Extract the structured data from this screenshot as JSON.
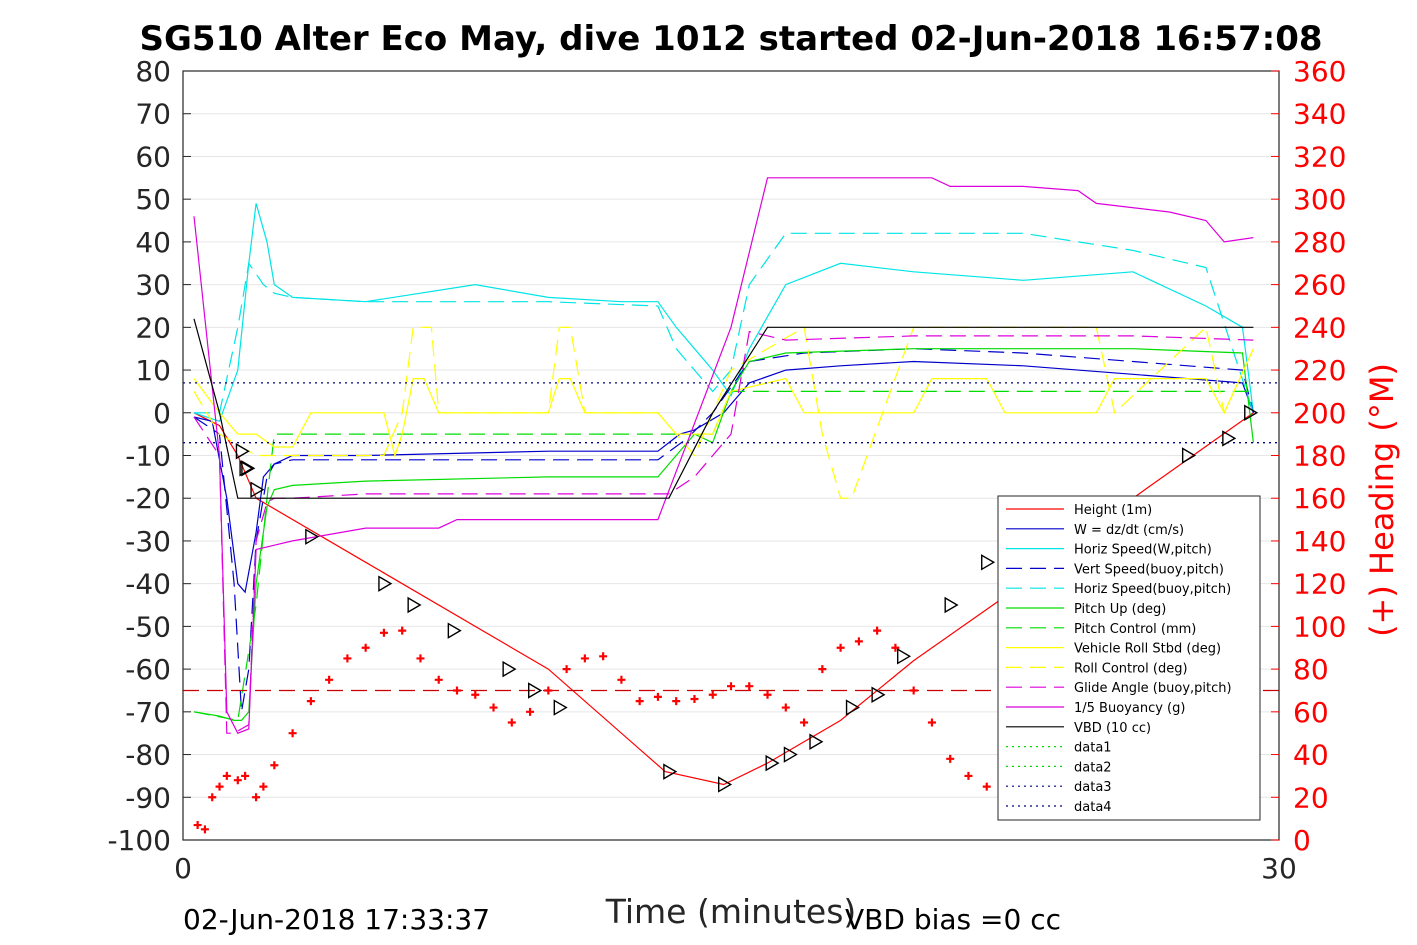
{
  "chart_data": {
    "type": "line",
    "title": "SG510 Alter Eco May, dive 1012 started 02-Jun-2018 16:57:08",
    "xlabel": "Time (minutes)",
    "ylabel_right": "(+) Heading (°M)",
    "xlim": [
      0,
      30
    ],
    "ylim": [
      -100,
      80
    ],
    "ylim_right": [
      0,
      360
    ],
    "x_ticks": [
      "0",
      "30"
    ],
    "y_ticks": [
      "80",
      "70",
      "60",
      "50",
      "40",
      "30",
      "20",
      "10",
      "0",
      "-10",
      "-20",
      "-30",
      "-40",
      "-50",
      "-60",
      "-70",
      "-80",
      "-90",
      "-100"
    ],
    "y2_ticks": [
      "360",
      "340",
      "320",
      "300",
      "280",
      "260",
      "240",
      "220",
      "200",
      "180",
      "160",
      "140",
      "120",
      "100",
      "80",
      "60",
      "40",
      "20",
      "0"
    ],
    "grid": true,
    "legend_position": "lower-right",
    "footer_left": "02-Jun-2018 17:33:37",
    "footer_right": "VBD bias =0 cc",
    "series": [
      {
        "name": "Height (1m)",
        "color": "#ff0000",
        "style": "solid",
        "x": [
          0.3,
          1.0,
          1.5,
          2.0,
          5.0,
          10.0,
          13.2,
          14.8,
          16.0,
          18.0,
          20.0,
          23.0,
          26.0,
          29.3
        ],
        "y": [
          0,
          -3,
          -10,
          -20,
          -35,
          -60,
          -84,
          -87,
          -82,
          -72,
          -58,
          -40,
          -20,
          0
        ]
      },
      {
        "name": "W = dz/dt (cm/s)",
        "color": "#0000cc",
        "style": "solid",
        "x": [
          0.3,
          0.8,
          1.2,
          1.5,
          1.7,
          2.0,
          2.2,
          2.5,
          3.0,
          5.0,
          10.0,
          13.0,
          13.6,
          14.0,
          14.8,
          15.5,
          16.5,
          18.0,
          20.0,
          23.0,
          26.0,
          29.0,
          29.3
        ],
        "y": [
          -1,
          -2,
          -20,
          -40,
          -42,
          -28,
          -15,
          -12,
          -10,
          -10,
          -9,
          -9,
          -5,
          -4,
          0,
          7,
          10,
          11,
          12,
          11,
          9,
          7,
          0
        ]
      },
      {
        "name": "Horiz Speed(W,pitch)",
        "color": "#00e5e5",
        "style": "solid",
        "x": [
          0.3,
          1.0,
          1.5,
          1.8,
          2.0,
          2.3,
          2.5,
          3.0,
          5.0,
          8.0,
          10.0,
          12.0,
          13.0,
          13.5,
          14.0,
          14.5,
          15.0,
          15.5,
          16.5,
          18.0,
          20.0,
          23.0,
          26.0,
          28.0,
          29.0,
          29.3
        ],
        "y": [
          0,
          -2,
          10,
          35,
          49,
          40,
          30,
          27,
          26,
          30,
          27,
          26,
          26,
          20,
          15,
          10,
          4,
          15,
          30,
          35,
          33,
          31,
          33,
          25,
          20,
          0
        ]
      },
      {
        "name": "Vert Speed(buoy,pitch)",
        "color": "#0000cc",
        "style": "dash",
        "x": [
          0.3,
          1.0,
          1.4,
          1.6,
          1.8,
          2.0,
          2.3,
          2.5,
          3.0,
          5.0,
          10.0,
          13.0,
          13.8,
          14.5,
          15.5,
          17.0,
          20.0,
          23.0,
          26.0,
          29.0,
          29.3
        ],
        "y": [
          -1,
          -5,
          -40,
          -70,
          -60,
          -30,
          -15,
          -12,
          -11,
          -11,
          -11,
          -11,
          -6,
          0,
          12,
          14,
          15,
          14,
          12,
          10,
          0
        ]
      },
      {
        "name": "Horiz Speed(buoy,pitch)",
        "color": "#00e5e5",
        "style": "dash",
        "x": [
          0.3,
          1.0,
          1.5,
          1.8,
          2.2,
          2.5,
          3.0,
          5.0,
          10.0,
          13.0,
          13.5,
          14.0,
          14.5,
          15.0,
          15.5,
          16.5,
          18.0,
          20.0,
          23.0,
          26.0,
          28.0,
          29.3
        ],
        "y": [
          0,
          0,
          20,
          35,
          30,
          28,
          27,
          26,
          26,
          25,
          15,
          10,
          5,
          10,
          30,
          42,
          42,
          42,
          42,
          38,
          34,
          0
        ]
      },
      {
        "name": "Pitch Up (deg)",
        "color": "#00dd00",
        "style": "solid",
        "x": [
          0.3,
          1.0,
          1.4,
          1.6,
          1.8,
          2.0,
          2.3,
          2.5,
          3.0,
          5.0,
          10.0,
          13.0,
          13.5,
          14.0,
          14.5,
          15.0,
          15.5,
          16.5,
          20.0,
          23.0,
          26.0,
          29.0,
          29.3
        ],
        "y": [
          -70,
          -71,
          -72,
          -72,
          -70,
          -40,
          -22,
          -18,
          -17,
          -16,
          -15,
          -15,
          -10,
          -5,
          -7,
          5,
          12,
          14,
          15,
          15,
          15,
          14,
          -7
        ]
      },
      {
        "name": "Pitch Control (mm)",
        "color": "#00dd00",
        "style": "dash",
        "x": [
          0.3,
          1.5,
          2.0,
          2.3,
          2.5,
          13.3,
          13.5,
          14.5,
          15.0,
          29.3
        ],
        "y": [
          -70,
          -72,
          -45,
          -20,
          -5,
          -5,
          -5,
          -5,
          5,
          5
        ]
      },
      {
        "name": "Vehicle Roll Stbd (deg)",
        "color": "#ffff00",
        "style": "solid",
        "x": [
          0.3,
          1.0,
          1.5,
          2.0,
          2.5,
          3.0,
          3.5,
          5.5,
          5.8,
          6.0,
          6.3,
          6.6,
          7.0,
          10.0,
          10.3,
          10.6,
          11.0,
          13.0,
          13.5,
          14.5,
          15.0,
          16.5,
          17.0,
          20.0,
          20.5,
          22.0,
          22.5,
          25.0,
          25.5,
          28.0,
          28.5,
          29.3
        ],
        "y": [
          8,
          0,
          -5,
          -5,
          -8,
          -8,
          0,
          0,
          -10,
          -5,
          8,
          8,
          0,
          0,
          8,
          8,
          0,
          0,
          -5,
          -5,
          5,
          8,
          0,
          0,
          8,
          8,
          0,
          0,
          8,
          8,
          0,
          15
        ]
      },
      {
        "name": "Roll Control (deg)",
        "color": "#ffff00",
        "style": "dash",
        "x": [
          0.3,
          1.0,
          2.0,
          3.0,
          5.5,
          6.0,
          6.3,
          6.8,
          7.0,
          10.0,
          10.3,
          10.6,
          11.0,
          13.0,
          14.0,
          15.0,
          17.0,
          17.5,
          18.0,
          18.3,
          20.0,
          22.0,
          25.0,
          25.5,
          28.0,
          28.5,
          29.3
        ],
        "y": [
          5,
          -5,
          -10,
          -10,
          -10,
          0,
          20,
          20,
          0,
          0,
          20,
          20,
          0,
          0,
          -10,
          10,
          20,
          -5,
          -20,
          -20,
          20,
          20,
          20,
          0,
          20,
          0,
          15
        ]
      },
      {
        "name": "Glide Angle (buoy,pitch)",
        "color": "#dd00dd",
        "style": "dash",
        "x": [
          0.3,
          1.0,
          1.2,
          1.4,
          1.6,
          1.8,
          2.0,
          2.3,
          2.5,
          3.0,
          5.0,
          13.0,
          13.3,
          14.0,
          15.0,
          15.5,
          16.5,
          20.0,
          26.0,
          29.3
        ],
        "y": [
          -1,
          -10,
          -75,
          -75,
          -74,
          -73,
          -30,
          -21,
          -20,
          -20,
          -19,
          -19,
          -19,
          -15,
          -5,
          19,
          17,
          18,
          18,
          17
        ]
      },
      {
        "name": "1/5 Buoyancy (g)",
        "color": "#dd00dd",
        "style": "solid",
        "x": [
          0.3,
          1.0,
          1.2,
          1.5,
          1.8,
          2.0,
          2.5,
          3.0,
          5.0,
          7.0,
          7.5,
          13.0,
          15.0,
          16.0,
          20.5,
          21.0,
          23.0,
          24.5,
          25.0,
          27.0,
          28.0,
          28.5,
          29.3
        ],
        "y": [
          46,
          -10,
          -70,
          -75,
          -74,
          -32,
          -31,
          -30,
          -27,
          -27,
          -25,
          -25,
          20,
          55,
          55,
          53,
          53,
          52,
          49,
          47,
          45,
          40,
          41
        ]
      },
      {
        "name": "VBD (10 cc)",
        "color": "#000000",
        "style": "solid",
        "x": [
          0.3,
          1.0,
          1.5,
          13.3,
          14.5,
          16.0,
          29.3
        ],
        "y": [
          22,
          0,
          -20,
          -20,
          0,
          20,
          20
        ]
      },
      {
        "name": "data1",
        "color": "#00dd00",
        "style": "dot",
        "x": [],
        "y": []
      },
      {
        "name": "data2",
        "color": "#00dd00",
        "style": "dot",
        "x": [],
        "y": []
      },
      {
        "name": "data3",
        "color": "#000080",
        "style": "dot",
        "x": [
          0,
          30
        ],
        "y": [
          7,
          7
        ]
      },
      {
        "name": "data4",
        "color": "#000080",
        "style": "dot",
        "x": [
          0,
          30
        ],
        "y": [
          -7,
          -7
        ]
      }
    ],
    "heading": {
      "color": "#ff0000",
      "target_deg": 70,
      "x": [
        0.4,
        0.6,
        0.8,
        1.0,
        1.2,
        1.5,
        1.7,
        2.0,
        2.2,
        2.5,
        3.0,
        3.5,
        4.0,
        4.5,
        5.0,
        5.5,
        6.0,
        6.5,
        7.0,
        7.5,
        8.0,
        8.5,
        9.0,
        9.5,
        10.0,
        10.5,
        11.0,
        11.5,
        12.0,
        12.5,
        13.0,
        13.5,
        14.0,
        14.5,
        15.0,
        15.5,
        16.0,
        16.5,
        17.0,
        17.5,
        18.0,
        18.5,
        19.0,
        19.5,
        20.0,
        20.5,
        21.0,
        21.5,
        22.0,
        22.5,
        23.0,
        23.5,
        24.0,
        24.5,
        25.0,
        25.5,
        26.0,
        26.5,
        27.0,
        27.5,
        28.0,
        28.5,
        29.0,
        29.3
      ],
      "y": [
        7,
        5,
        20,
        25,
        30,
        28,
        30,
        20,
        25,
        35,
        50,
        65,
        75,
        85,
        90,
        97,
        98,
        85,
        75,
        70,
        68,
        62,
        55,
        60,
        70,
        80,
        85,
        86,
        75,
        65,
        67,
        65,
        66,
        68,
        72,
        72,
        68,
        62,
        55,
        80,
        90,
        93,
        98,
        90,
        70,
        55,
        38,
        30,
        25,
        28,
        40,
        55,
        70,
        80,
        86,
        82,
        75,
        65,
        55,
        52,
        50,
        48,
        45,
        40
      ]
    },
    "markers": {
      "color": "#000000",
      "x": [
        1.6,
        1.7,
        1.75,
        2.0,
        3.5,
        5.5,
        6.3,
        7.4,
        8.9,
        9.6,
        10.3,
        13.3,
        14.8,
        16.1,
        16.6,
        17.3,
        18.3,
        19.0,
        19.7,
        21.0,
        22.0,
        27.5,
        28.6,
        29.2
      ],
      "y": [
        -9,
        -13,
        -13,
        -18,
        -29,
        -40,
        -45,
        -51,
        -60,
        -65,
        -69,
        -84,
        -87,
        -82,
        -80,
        -77,
        -69,
        -66,
        -57,
        -45,
        -35,
        -10,
        -6,
        0
      ]
    }
  }
}
